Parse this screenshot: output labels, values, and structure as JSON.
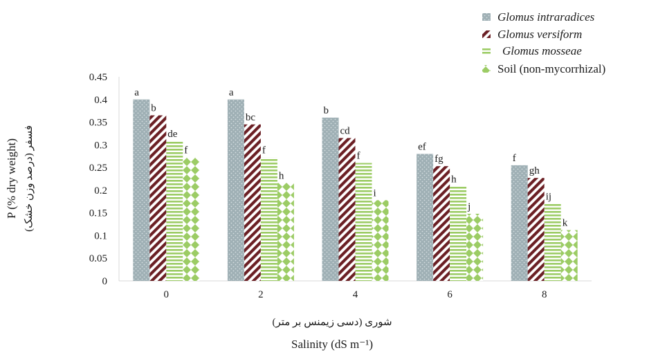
{
  "chart_data": {
    "type": "bar",
    "categories": [
      "0",
      "2",
      "4",
      "6",
      "8"
    ],
    "series": [
      {
        "name": "Glomus intraradices",
        "values": [
          0.4,
          0.4,
          0.36,
          0.28,
          0.255
        ],
        "labels": [
          "a",
          "a",
          "b",
          "ef",
          "f"
        ],
        "color": "#9fb0b5",
        "pattern": "dots",
        "italic": true
      },
      {
        "name": "Glomus versiform",
        "values": [
          0.365,
          0.345,
          0.315,
          0.253,
          0.227
        ],
        "labels": [
          "b",
          "bc",
          "cd",
          "fg",
          "gh"
        ],
        "color": "#6b1f24",
        "pattern": "diagonal",
        "italic": true
      },
      {
        "name": "Glomus mosseae",
        "values": [
          0.308,
          0.272,
          0.26,
          0.208,
          0.17
        ],
        "labels": [
          "de",
          "f",
          "f",
          "h",
          "ij"
        ],
        "color": "#9ccc65",
        "pattern": "horizontal",
        "italic": true
      },
      {
        "name": "Soil (non-mycorrhizal)",
        "values": [
          0.272,
          0.216,
          0.178,
          0.148,
          0.112
        ],
        "labels": [
          "f",
          "h",
          "i",
          "j",
          "k"
        ],
        "color": "#9ccc65",
        "pattern": "diamond",
        "italic": false
      }
    ],
    "ylabel": "P (% dry weight)",
    "ylabel_secondary": "فسفر (درصد وزن خشک)",
    "xlabel": "Salinity (dS m⁻¹)",
    "xlabel_secondary": "شوری (دسی زیمنس بر متر)",
    "yticks": [
      "0",
      "0.05",
      "0.1",
      "0.15",
      "0.2",
      "0.25",
      "0.3",
      "0.35",
      "0.4",
      "0.45"
    ],
    "ylim": [
      0,
      0.45
    ],
    "grid": false,
    "legend_position": "top-right"
  }
}
